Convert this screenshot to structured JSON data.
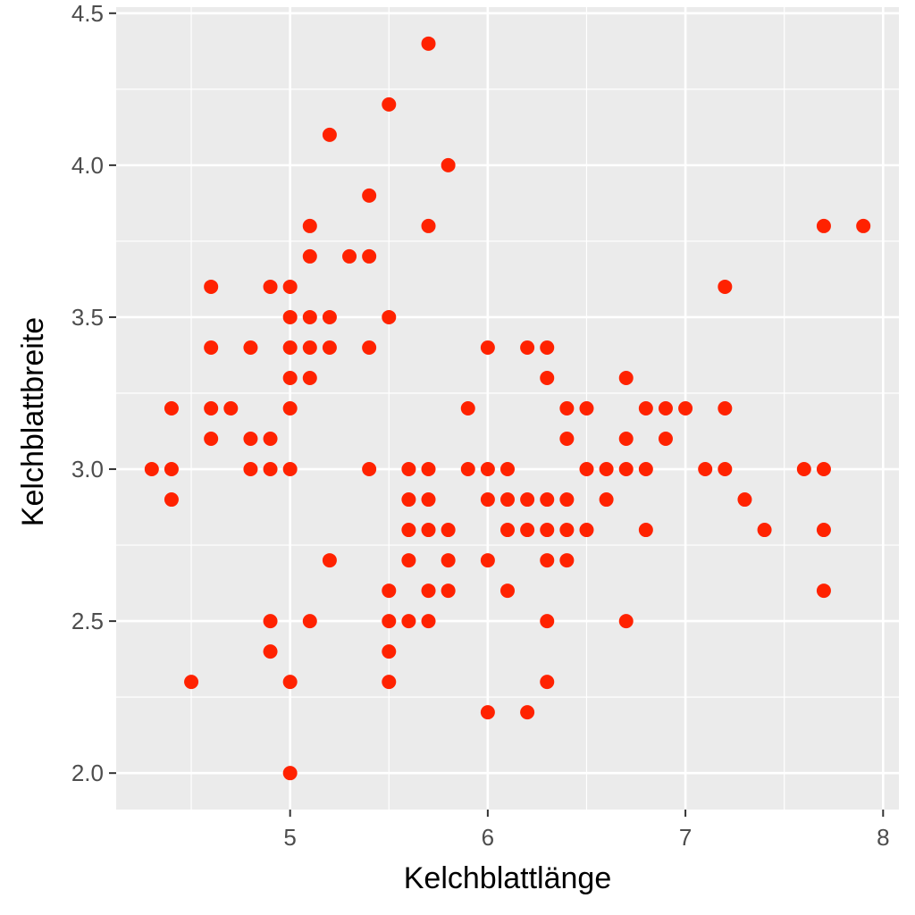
{
  "chart_data": {
    "type": "scatter",
    "title": "",
    "xlabel": "Kelchblattlänge",
    "ylabel": "Kelchblattbreite",
    "xlim": [
      4.12,
      8.08
    ],
    "ylim": [
      1.88,
      4.52
    ],
    "x_ticks": [
      5,
      6,
      7,
      8
    ],
    "x_tick_labels": [
      "5",
      "6",
      "7",
      "8"
    ],
    "y_ticks": [
      2.0,
      2.5,
      3.0,
      3.5,
      4.0,
      4.5
    ],
    "y_tick_labels": [
      "2.0",
      "2.5",
      "3.0",
      "3.5",
      "4.0",
      "4.5"
    ],
    "grid": true,
    "colors": {
      "panel_background": "#ebebeb",
      "grid": "#ffffff",
      "point": "#ff2200",
      "tick_mark": "#333333"
    },
    "series": [
      {
        "points": [
          [
            4.3,
            3.0
          ],
          [
            4.4,
            3.2
          ],
          [
            4.4,
            3.0
          ],
          [
            4.4,
            2.9
          ],
          [
            4.5,
            2.3
          ],
          [
            4.6,
            3.6
          ],
          [
            4.6,
            3.4
          ],
          [
            4.6,
            3.2
          ],
          [
            4.6,
            3.1
          ],
          [
            4.7,
            3.2
          ],
          [
            4.8,
            3.4
          ],
          [
            4.8,
            3.1
          ],
          [
            4.8,
            3.0
          ],
          [
            4.9,
            3.6
          ],
          [
            4.9,
            3.1
          ],
          [
            4.9,
            3.0
          ],
          [
            4.9,
            2.5
          ],
          [
            4.9,
            2.4
          ],
          [
            5.0,
            3.6
          ],
          [
            5.0,
            3.5
          ],
          [
            5.0,
            3.4
          ],
          [
            5.0,
            3.3
          ],
          [
            5.0,
            3.2
          ],
          [
            5.0,
            3.0
          ],
          [
            5.0,
            2.3
          ],
          [
            5.0,
            2.0
          ],
          [
            5.1,
            3.8
          ],
          [
            5.1,
            3.7
          ],
          [
            5.1,
            3.5
          ],
          [
            5.1,
            3.4
          ],
          [
            5.1,
            3.3
          ],
          [
            5.1,
            2.5
          ],
          [
            5.2,
            4.1
          ],
          [
            5.2,
            3.5
          ],
          [
            5.2,
            3.4
          ],
          [
            5.2,
            2.7
          ],
          [
            5.3,
            3.7
          ],
          [
            5.4,
            3.9
          ],
          [
            5.4,
            3.7
          ],
          [
            5.4,
            3.4
          ],
          [
            5.4,
            3.0
          ],
          [
            5.5,
            4.2
          ],
          [
            5.5,
            3.5
          ],
          [
            5.5,
            2.6
          ],
          [
            5.5,
            2.5
          ],
          [
            5.5,
            2.4
          ],
          [
            5.5,
            2.3
          ],
          [
            5.6,
            3.0
          ],
          [
            5.6,
            2.9
          ],
          [
            5.6,
            2.8
          ],
          [
            5.6,
            2.7
          ],
          [
            5.6,
            2.5
          ],
          [
            5.7,
            4.4
          ],
          [
            5.7,
            3.8
          ],
          [
            5.7,
            3.0
          ],
          [
            5.7,
            2.9
          ],
          [
            5.7,
            2.8
          ],
          [
            5.7,
            2.6
          ],
          [
            5.7,
            2.5
          ],
          [
            5.8,
            4.0
          ],
          [
            5.8,
            2.8
          ],
          [
            5.8,
            2.7
          ],
          [
            5.8,
            2.6
          ],
          [
            5.9,
            3.2
          ],
          [
            5.9,
            3.0
          ],
          [
            6.0,
            3.4
          ],
          [
            6.0,
            3.0
          ],
          [
            6.0,
            2.9
          ],
          [
            6.0,
            2.7
          ],
          [
            6.0,
            2.2
          ],
          [
            6.1,
            3.0
          ],
          [
            6.1,
            2.9
          ],
          [
            6.1,
            2.8
          ],
          [
            6.1,
            2.6
          ],
          [
            6.2,
            3.4
          ],
          [
            6.2,
            2.9
          ],
          [
            6.2,
            2.8
          ],
          [
            6.2,
            2.2
          ],
          [
            6.3,
            3.4
          ],
          [
            6.3,
            3.3
          ],
          [
            6.3,
            2.9
          ],
          [
            6.3,
            2.8
          ],
          [
            6.3,
            2.7
          ],
          [
            6.3,
            2.5
          ],
          [
            6.3,
            2.3
          ],
          [
            6.4,
            3.2
          ],
          [
            6.4,
            3.1
          ],
          [
            6.4,
            2.9
          ],
          [
            6.4,
            2.8
          ],
          [
            6.4,
            2.7
          ],
          [
            6.5,
            3.2
          ],
          [
            6.5,
            3.0
          ],
          [
            6.5,
            2.8
          ],
          [
            6.6,
            3.0
          ],
          [
            6.6,
            2.9
          ],
          [
            6.7,
            3.3
          ],
          [
            6.7,
            3.1
          ],
          [
            6.7,
            3.0
          ],
          [
            6.7,
            2.5
          ],
          [
            6.8,
            3.2
          ],
          [
            6.8,
            3.0
          ],
          [
            6.8,
            2.8
          ],
          [
            6.9,
            3.2
          ],
          [
            6.9,
            3.1
          ],
          [
            7.0,
            3.2
          ],
          [
            7.1,
            3.0
          ],
          [
            7.2,
            3.6
          ],
          [
            7.2,
            3.2
          ],
          [
            7.2,
            3.0
          ],
          [
            7.3,
            2.9
          ],
          [
            7.4,
            2.8
          ],
          [
            7.6,
            3.0
          ],
          [
            7.7,
            3.8
          ],
          [
            7.7,
            3.0
          ],
          [
            7.7,
            2.8
          ],
          [
            7.7,
            2.6
          ],
          [
            7.9,
            3.8
          ]
        ]
      }
    ]
  }
}
